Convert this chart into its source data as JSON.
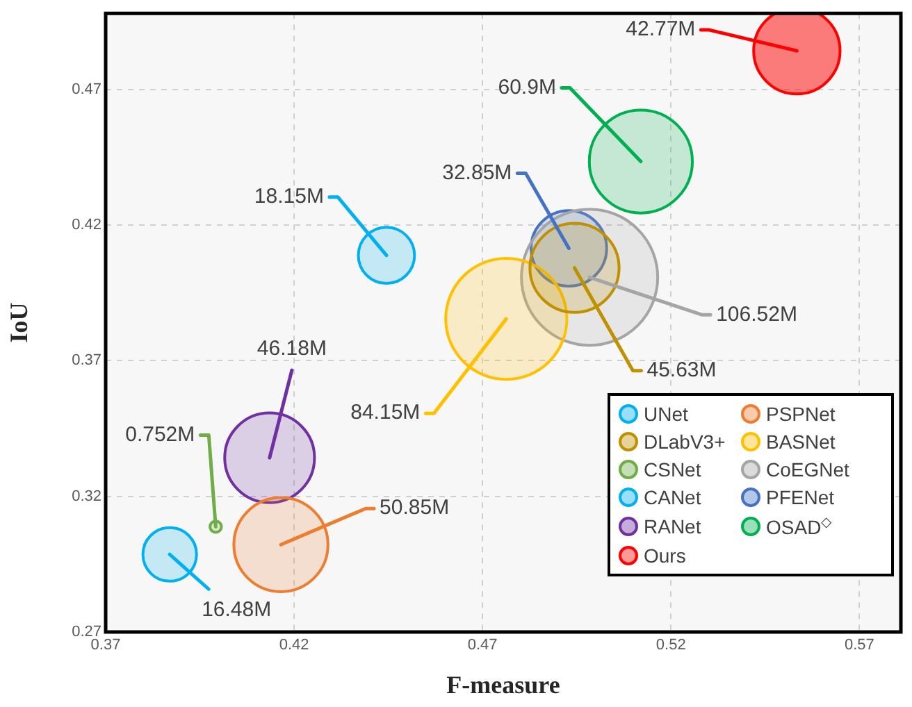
{
  "chart_data": {
    "type": "bubble",
    "xlabel": "F-measure",
    "ylabel": "IoU",
    "xlim": [
      0.37,
      0.581
    ],
    "ylim": [
      0.27,
      0.498
    ],
    "xticks": [
      0.37,
      0.42,
      0.47,
      0.52,
      0.57
    ],
    "yticks": [
      0.27,
      0.32,
      0.37,
      0.42,
      0.47
    ],
    "grid": true,
    "legend": "bottom right",
    "marker": "circle",
    "series": [
      {
        "name": "UNet",
        "color": "#00b0f0",
        "x": [
          0.4445
        ],
        "values": [
          0.4088
        ],
        "sizes": [
          0.17
        ]
      },
      {
        "name": "PSPNet",
        "color": "#ed7d31",
        "x": [
          0.4165
        ],
        "values": [
          0.3022
        ],
        "sizes": [
          0.477
        ]
      },
      {
        "name": "DLabV3+",
        "color": "#bf9000",
        "x": [
          0.4944
        ],
        "values": [
          0.4042
        ],
        "sizes": [
          0.428
        ]
      },
      {
        "name": "BASNet",
        "color": "#ffc000",
        "x": [
          0.4763
        ],
        "values": [
          0.3854
        ],
        "sizes": [
          0.79
        ]
      },
      {
        "name": "CSNet",
        "color": "#70ad47",
        "x": [
          0.3992
        ],
        "values": [
          0.3088
        ],
        "sizes": [
          0.007
        ]
      },
      {
        "name": "CoEGNet",
        "color": "#a5a5a5",
        "x": [
          0.4984
        ],
        "values": [
          0.4007
        ],
        "sizes": [
          1
        ]
      },
      {
        "name": "CANet",
        "color": "#00b0f0",
        "x": [
          0.387
        ],
        "values": [
          0.2986
        ],
        "sizes": [
          0.155
        ]
      },
      {
        "name": "PFENet",
        "color": "#4472c4",
        "x": [
          0.4929
        ],
        "values": [
          0.4114
        ],
        "sizes": [
          0.308
        ]
      },
      {
        "name": "RANet",
        "color": "#7030a0",
        "x": [
          0.4135
        ],
        "values": [
          0.3342
        ],
        "sizes": [
          0.434
        ]
      },
      {
        "name": "OSAD$^{◇}$",
        "color": "#00b050",
        "x": [
          0.512
        ],
        "values": [
          0.4434
        ],
        "sizes": [
          0.572
        ]
      },
      {
        "name": "Ours",
        "color": "#ff0000",
        "x": [
          0.5534
        ],
        "values": [
          0.4842
        ],
        "sizes": [
          0.402
        ]
      }
    ],
    "annotations": [
      {
        "text": "18.15M",
        "x": 0.4445,
        "y": 0.4088
      },
      {
        "text": "50.85M",
        "x": 0.4165,
        "y": 0.3022
      },
      {
        "text": "45.63M",
        "x": 0.4944,
        "y": 0.4042
      },
      {
        "text": "84.15M",
        "x": 0.4763,
        "y": 0.3854
      },
      {
        "text": "0.752M",
        "x": 0.3992,
        "y": 0.3088
      },
      {
        "text": "106.52M",
        "x": 0.4984,
        "y": 0.4007
      },
      {
        "text": "16.48M",
        "x": 0.387,
        "y": 0.2986
      },
      {
        "text": "32.85M",
        "x": 0.4929,
        "y": 0.4114
      },
      {
        "text": "46.18M",
        "x": 0.4135,
        "y": 0.3342
      },
      {
        "text": "60.9M",
        "x": 0.512,
        "y": 0.4434
      },
      {
        "text": "42.77M",
        "x": 0.5534,
        "y": 0.4842
      }
    ]
  }
}
